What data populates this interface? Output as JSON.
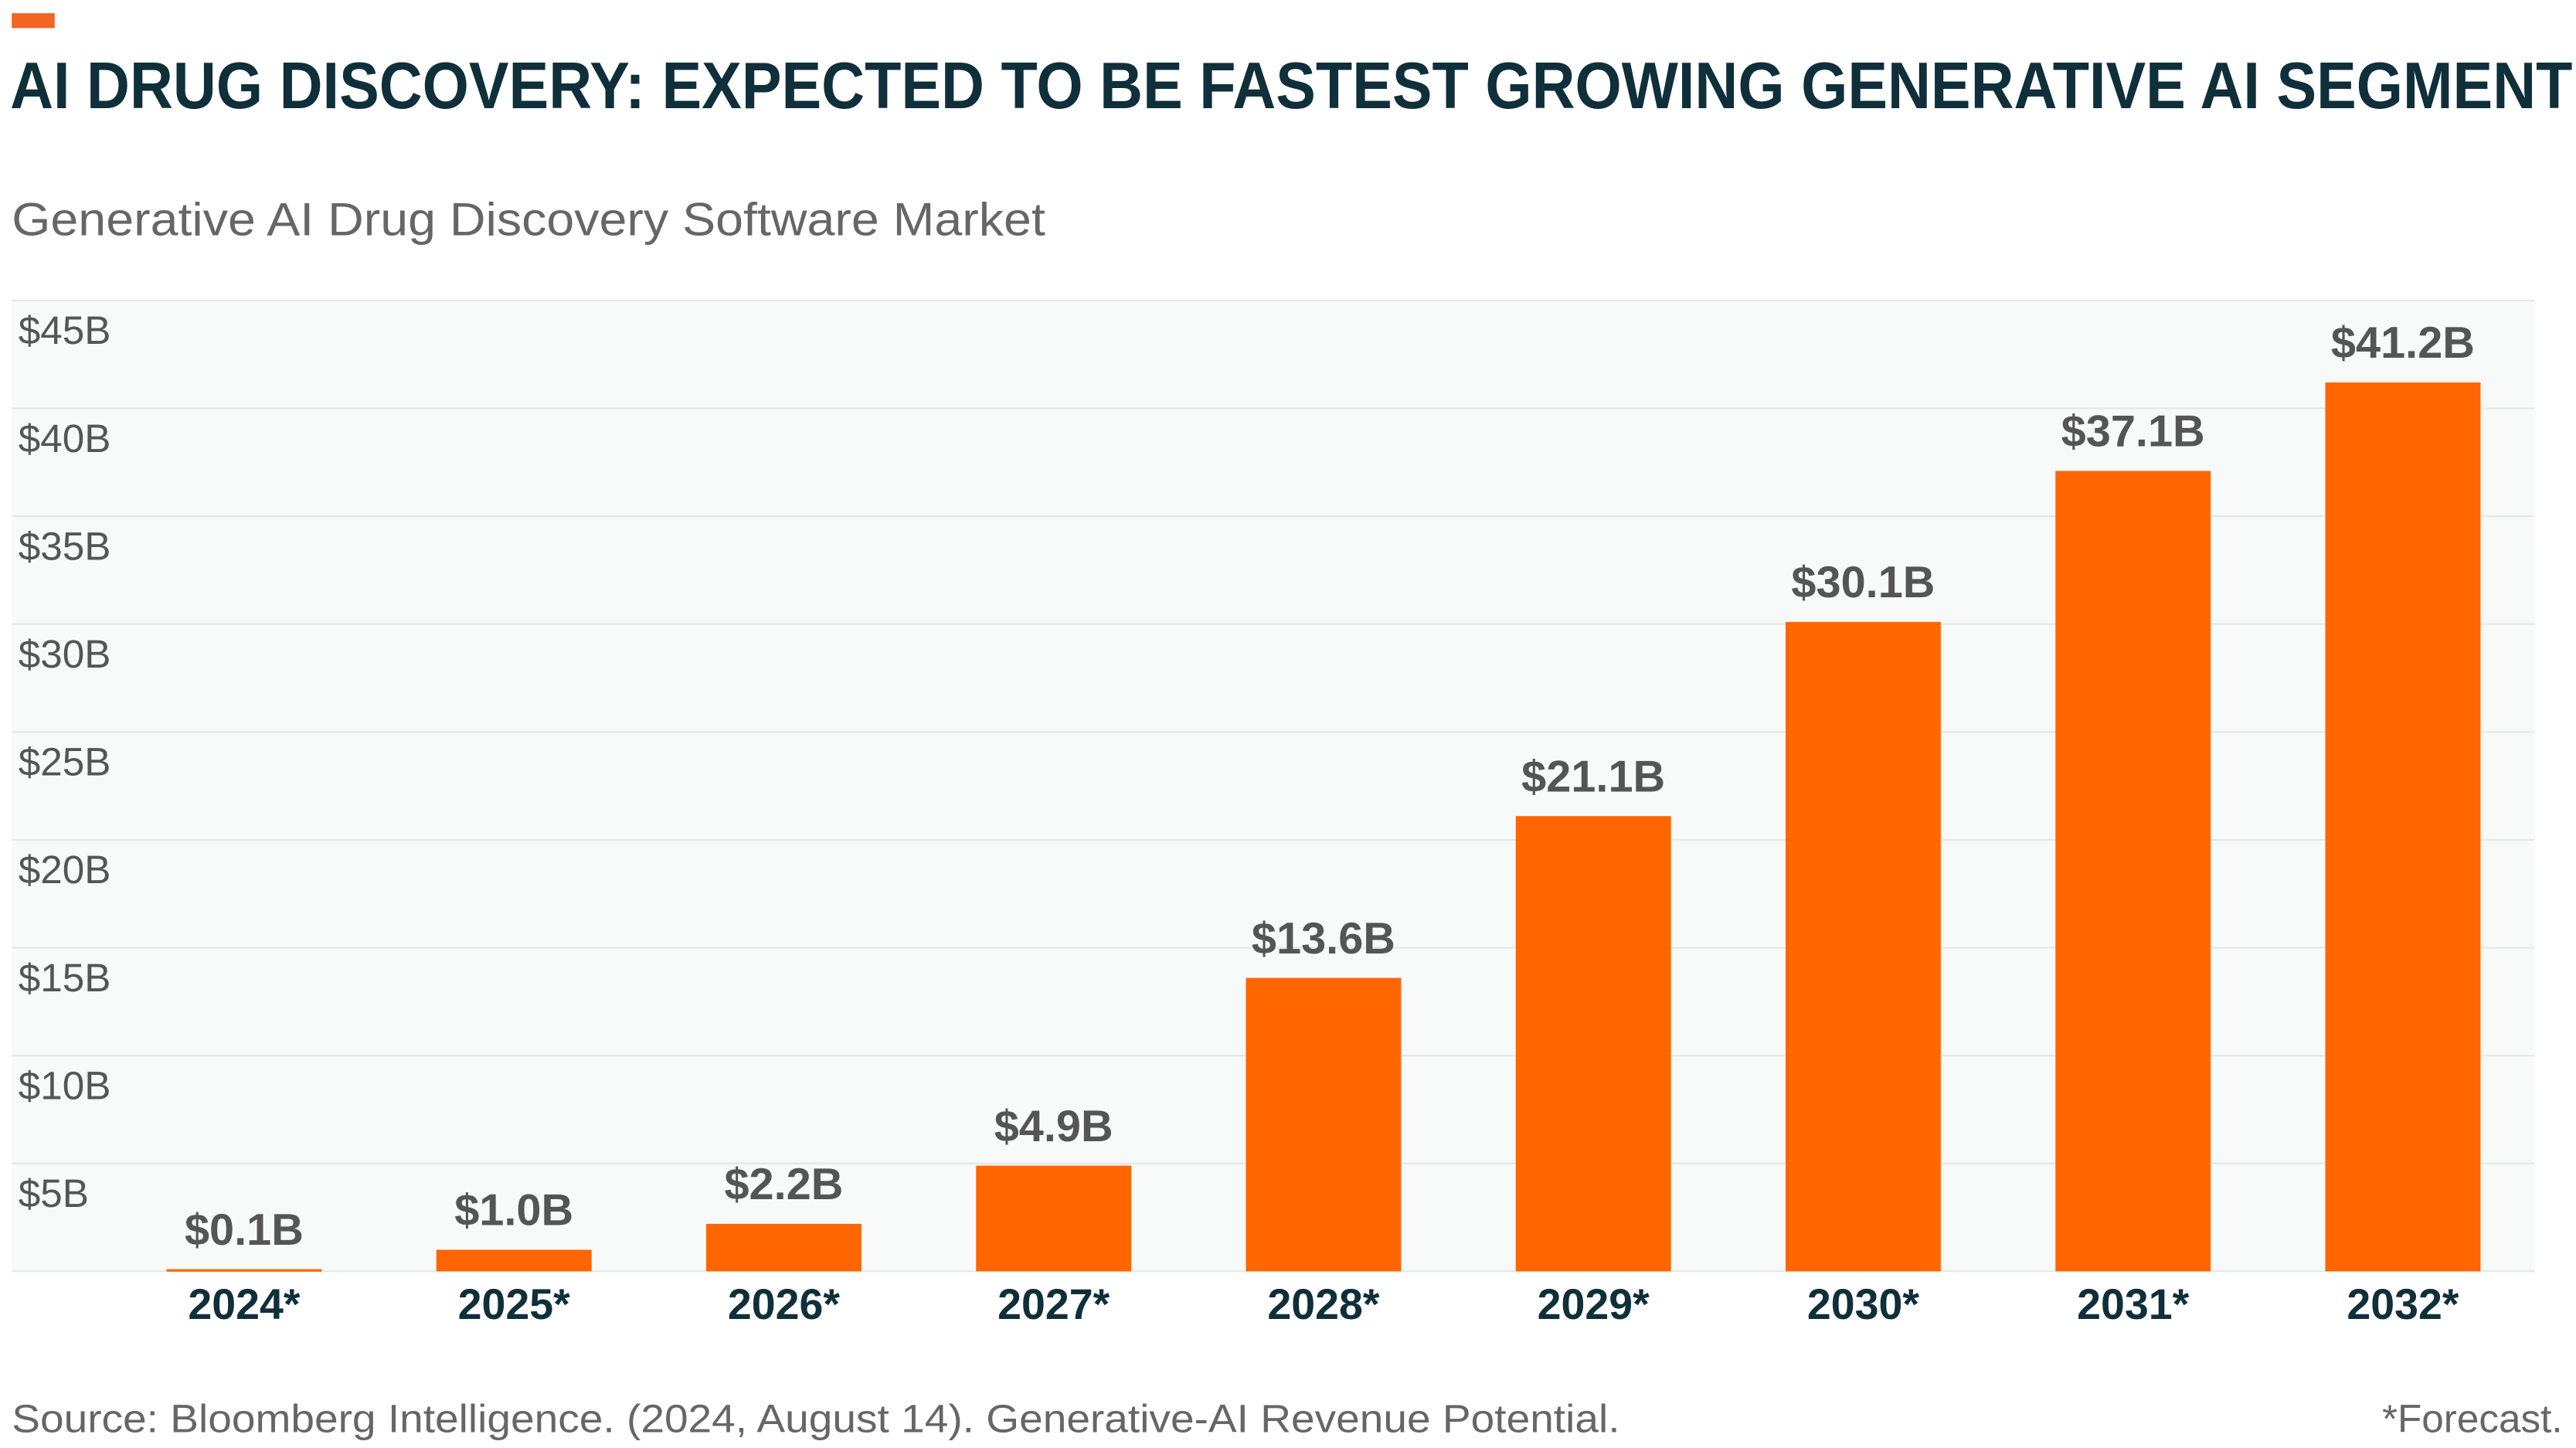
{
  "chart_data": {
    "type": "bar",
    "title": "AI DRUG DISCOVERY: EXPECTED TO BE FASTEST GROWING GENERATIVE AI SEGMENT",
    "subtitle": "Generative AI Drug Discovery Software Market",
    "categories": [
      "2024*",
      "2025*",
      "2026*",
      "2027*",
      "2028*",
      "2029*",
      "2030*",
      "2031*",
      "2032*"
    ],
    "values": [
      0.1,
      1.0,
      2.2,
      4.9,
      13.6,
      21.1,
      30.1,
      37.1,
      41.2
    ],
    "value_labels": [
      "$0.1B",
      "$1.0B",
      "$2.2B",
      "$4.9B",
      "$13.6B",
      "$21.1B",
      "$30.1B",
      "$37.1B",
      "$41.2B"
    ],
    "color": "#ff6600",
    "ylim": [
      0,
      45
    ],
    "yticks": [
      {
        "value": 5,
        "label": "$5B"
      },
      {
        "value": 10,
        "label": "$10B"
      },
      {
        "value": 15,
        "label": "$15B"
      },
      {
        "value": 20,
        "label": "$20B"
      },
      {
        "value": 25,
        "label": "$25B"
      },
      {
        "value": 30,
        "label": "$30B"
      },
      {
        "value": 35,
        "label": "$35B"
      },
      {
        "value": 40,
        "label": "$40B"
      },
      {
        "value": 45,
        "label": "$45B"
      }
    ],
    "grid": true,
    "source": "Source: Bloomberg Intelligence. (2024, August 14). Generative-AI Revenue Potential.",
    "note": "*Forecast."
  }
}
